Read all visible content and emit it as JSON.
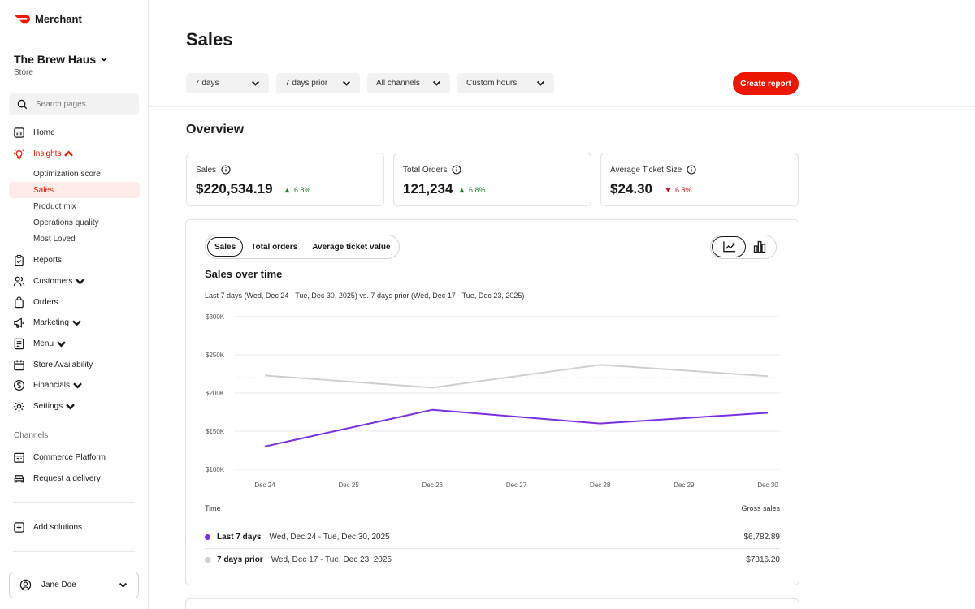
{
  "sidebar": {
    "brand": "Merchant",
    "store_name": "The Brew Haus",
    "store_sub": "Store",
    "search_placeholder": "Search pages",
    "items": [
      {
        "label": "Home",
        "icon": "chart-icon"
      },
      {
        "label": "Insights",
        "icon": "bulb-icon",
        "active": true
      },
      {
        "label": "Reports",
        "icon": "clipboard-icon"
      },
      {
        "label": "Customers",
        "icon": "users-icon"
      },
      {
        "label": "Orders",
        "icon": "bag-icon"
      },
      {
        "label": "Marketing",
        "icon": "megaphone-icon"
      },
      {
        "label": "Menu",
        "icon": "menu-book-icon"
      },
      {
        "label": "Store Availability",
        "icon": "calendar-icon"
      },
      {
        "label": "Financials",
        "icon": "dollar-icon"
      },
      {
        "label": "Settings",
        "icon": "gear-icon"
      }
    ],
    "insights_sub": [
      "Optimization score",
      "Sales",
      "Product mix",
      "Operations quality",
      "Most Loved"
    ],
    "channels_label": "Channels",
    "channels": [
      {
        "label": "Commerce Platform",
        "icon": "storefront-icon"
      },
      {
        "label": "Request a delivery",
        "icon": "car-icon"
      }
    ],
    "add_solutions": "Add solutions",
    "user": "Jane Doe"
  },
  "header": {
    "title": "Sales",
    "filters": [
      "7 days",
      "7 days prior",
      "All channels",
      "Custom hours"
    ],
    "create_report": "Create report"
  },
  "overview": {
    "title": "Overview",
    "kpis": [
      {
        "label": "Sales",
        "value": "$220,534.19",
        "change": "6.8%",
        "direction": "up"
      },
      {
        "label": "Total Orders",
        "value": "121,234",
        "change": "6.8%",
        "direction": "up"
      },
      {
        "label": "Average Ticket Size",
        "value": "$24.30",
        "change": "6.8%",
        "direction": "down"
      }
    ]
  },
  "chart_card": {
    "tabs": [
      "Sales",
      "Total orders",
      "Average ticket value"
    ],
    "selected_tab": "Sales",
    "title": "Sales over time",
    "subtitle": "Last 7 days (Wed, Dec 24 - Tue, Dec 30, 2025) vs. 7 days prior (Wed, Dec 17 - Tue, Dec 23, 2025)",
    "table": {
      "col_time": "Time",
      "col_gross": "Gross sales",
      "rows": [
        {
          "label": "Last 7 days",
          "range": "Wed, Dec 24 - Tue, Dec 30, 2025",
          "value": "$6,782.89",
          "color": "#7b2fe0"
        },
        {
          "label": "7 days prior",
          "range": "Wed, Dec 17 - Tue, Dec 23, 2025",
          "value": "$7816.20",
          "color": "#cfcfcf"
        }
      ]
    }
  },
  "chart_data": {
    "type": "line",
    "categories": [
      "Dec 24",
      "Dec 25",
      "Dec 26",
      "Dec 27",
      "Dec 28",
      "Dec 29",
      "Dec 30"
    ],
    "yticks": [
      "$100K",
      "$150K",
      "$200K",
      "$250K",
      "$300K"
    ],
    "ylim": [
      100000,
      300000
    ],
    "series": [
      {
        "values": [
          130000,
          null,
          178000,
          null,
          160000,
          null,
          174000
        ],
        "color": "#7b2fe0"
      },
      {
        "values": [
          223000,
          null,
          207000,
          null,
          237000,
          null,
          222000
        ],
        "color": "#cfcfcf"
      }
    ],
    "reference_line": 220000,
    "grid": true
  },
  "colors": {
    "accent": "#eb1700",
    "up": "#1a7f37",
    "down": "#c41e1e"
  }
}
